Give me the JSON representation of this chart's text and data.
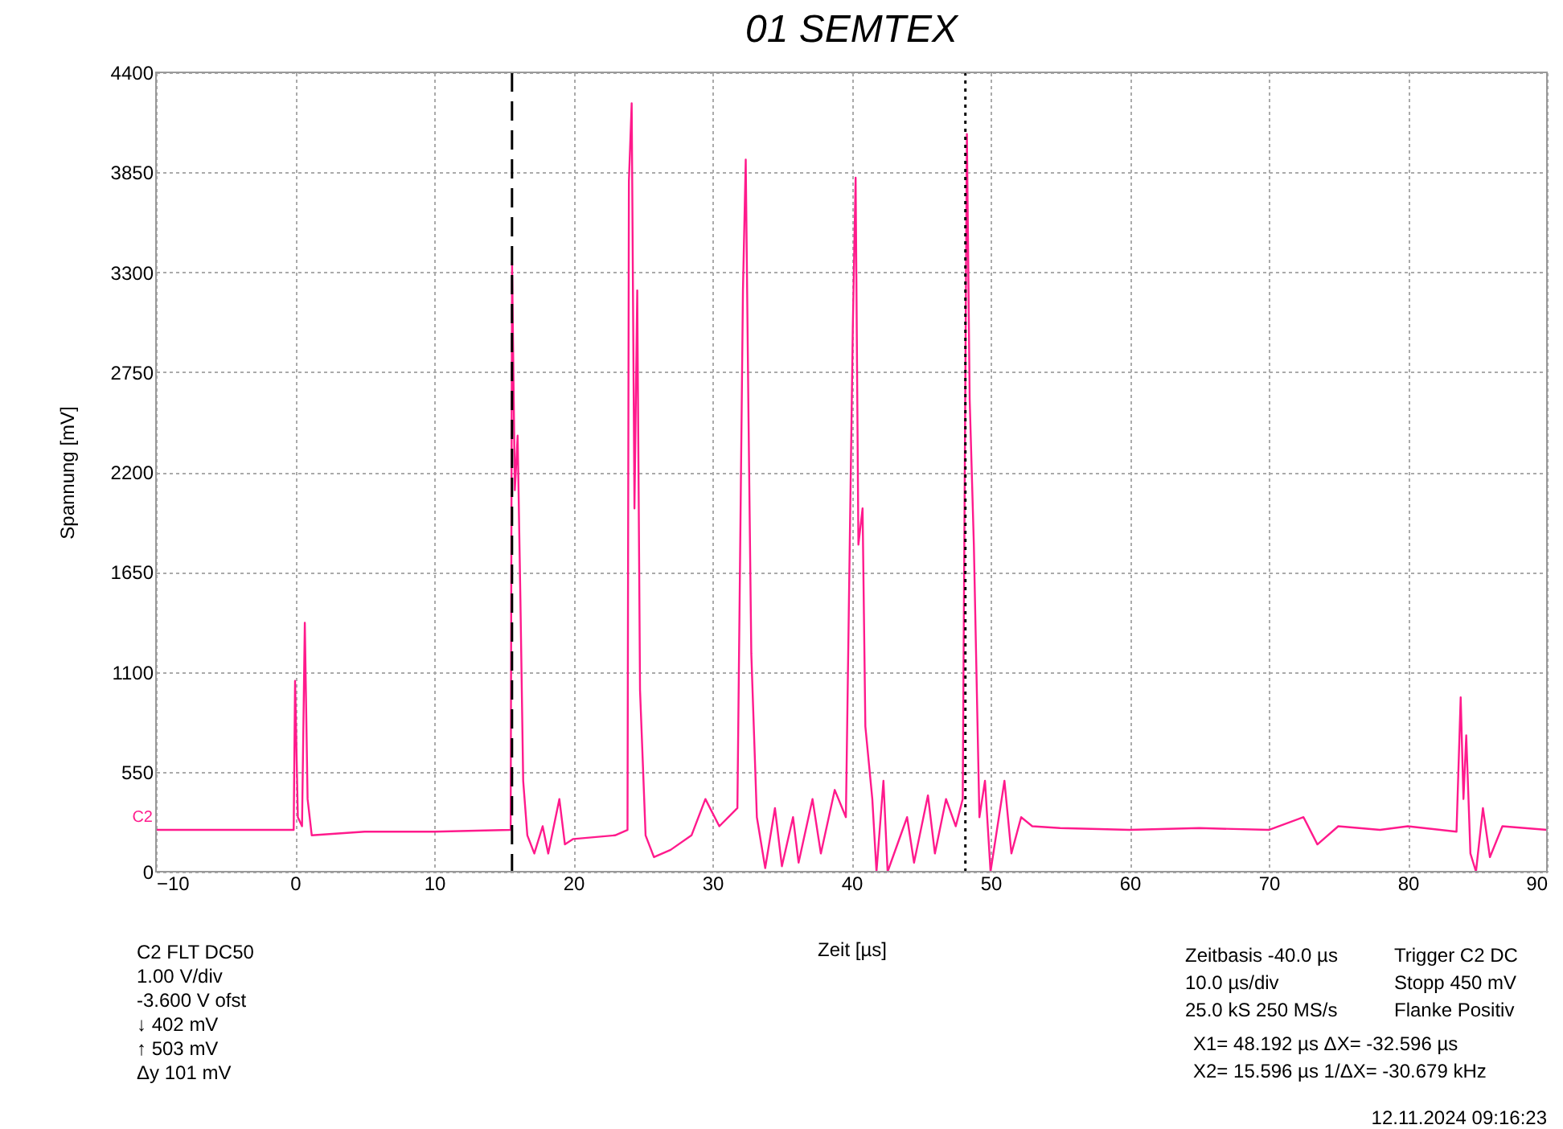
{
  "chart_data": {
    "type": "line",
    "title": "01 SEMTEX",
    "xlabel": "Zeit [µs]",
    "ylabel": "Spannung [mV]",
    "xlim": [
      -10,
      90
    ],
    "xticks": [
      -10,
      0,
      10,
      20,
      30,
      40,
      50,
      60,
      70,
      80,
      90
    ],
    "ylim": [
      0,
      4400
    ],
    "yticks": [
      0,
      550,
      1100,
      1650,
      2200,
      2750,
      3300,
      3850,
      4400
    ],
    "grid": true,
    "marker": "none",
    "line_style": "solid",
    "x": [
      -10,
      -5,
      -1,
      -0.1,
      0.0,
      0.2,
      0.5,
      0.7,
      0.9,
      1.2,
      5,
      10,
      15.5,
      15.6,
      15.8,
      16.0,
      16.2,
      16.4,
      16.7,
      17.2,
      17.8,
      18.2,
      19.0,
      19.4,
      20,
      23.0,
      23.9,
      24.0,
      24.2,
      24.4,
      24.6,
      24.8,
      25.2,
      25.8,
      27,
      28.5,
      29.5,
      30.5,
      31.8,
      32.2,
      32.4,
      32.6,
      32.8,
      33.2,
      33.8,
      34.5,
      35.0,
      35.8,
      36.2,
      37.2,
      37.8,
      38.8,
      39.6,
      40.1,
      40.3,
      40.5,
      40.8,
      41.0,
      41.5,
      41.8,
      42.3,
      42.6,
      44.0,
      44.5,
      45.5,
      46.0,
      46.8,
      47.5,
      48.0,
      48.3,
      48.5,
      48.8,
      49.2,
      49.6,
      50.0,
      51.0,
      51.5,
      52.2,
      53,
      55,
      60,
      65,
      70,
      72.5,
      73.5,
      75,
      78,
      80,
      83.5,
      83.8,
      84.0,
      84.2,
      84.5,
      84.9,
      85.4,
      85.9,
      86.8,
      90
    ],
    "series": [
      {
        "color": "#ff1a8c",
        "values": [
          230,
          230,
          230,
          230,
          1050,
          300,
          250,
          1370,
          400,
          200,
          220,
          220,
          230,
          3350,
          2100,
          2400,
          1500,
          500,
          200,
          100,
          250,
          100,
          400,
          150,
          180,
          200,
          230,
          3800,
          4230,
          2000,
          3200,
          1000,
          200,
          80,
          120,
          200,
          400,
          250,
          350,
          3200,
          3920,
          2500,
          1200,
          300,
          20,
          350,
          30,
          300,
          50,
          400,
          100,
          450,
          300,
          3000,
          3820,
          1800,
          2000,
          800,
          400,
          0,
          500,
          0,
          300,
          50,
          420,
          100,
          400,
          250,
          400,
          4060,
          2600,
          1800,
          300,
          500,
          0,
          500,
          100,
          300,
          250,
          240,
          230,
          240,
          230,
          300,
          150,
          250,
          230,
          250,
          220,
          960,
          400,
          750,
          100,
          0,
          350,
          80,
          250,
          230
        ]
      }
    ],
    "ref_lines": [
      {
        "axis": "x",
        "value": 15.596,
        "color": "#000000",
        "line_style": "dashed"
      },
      {
        "axis": "x",
        "value": 48.192,
        "color": "#000000",
        "line_style": "dotted"
      }
    ],
    "annotations": [
      {
        "text": "C2",
        "x": -10,
        "y": 230
      },
      "C2 FLT DC50",
      "1.00 V/div",
      "-3.600 V ofst",
      "↓ 402 mV",
      "↑ 503 mV",
      "Δy 101 mV",
      "Zeitbasis -40.0 µs",
      "10.0 µs/div",
      "25.0 kS 250 MS/s",
      "Trigger C2 DC",
      "Stopp 450 mV",
      "Flanke Positiv",
      "X1= 48.192 µs ΔX= -32.596 µs",
      "X2= 15.596 µs 1/ΔX= -30.679 kHz",
      "12.11.2024 09:16:23"
    ]
  }
}
